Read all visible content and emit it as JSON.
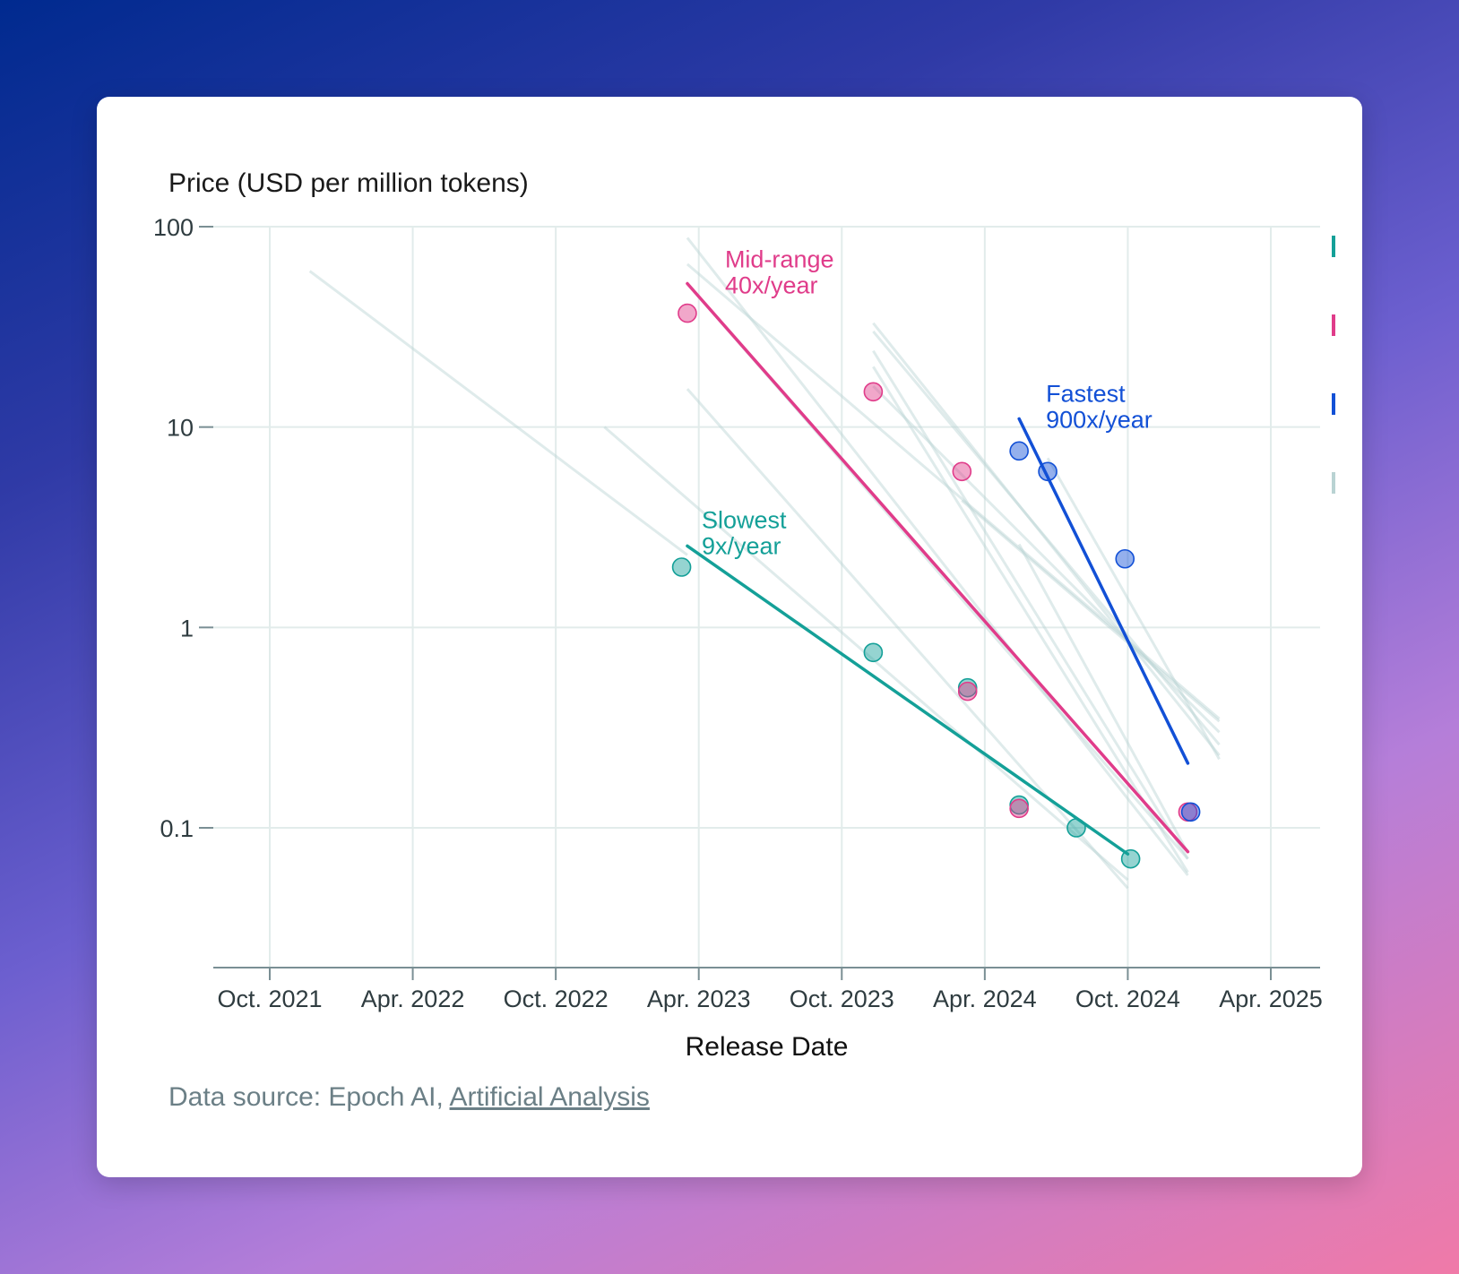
{
  "source": {
    "prefix": "Data source: Epoch AI, ",
    "link_label": "Artificial Analysis"
  },
  "chart_data": {
    "type": "scatter",
    "title": "",
    "ylabel": "Price (USD per million tokens)",
    "xlabel": "Release Date",
    "y_scale": "log",
    "ylim": [
      0.02,
      100
    ],
    "xlim": [
      2021.55,
      2025.25
    ],
    "y_ticks": [
      {
        "value": 100,
        "label": "100"
      },
      {
        "value": 10,
        "label": "10"
      },
      {
        "value": 1,
        "label": "1"
      },
      {
        "value": 0.1,
        "label": "0.1"
      }
    ],
    "x_ticks": [
      {
        "value": 2021.75,
        "label": "Oct. 2021"
      },
      {
        "value": 2022.25,
        "label": "Apr. 2022"
      },
      {
        "value": 2022.75,
        "label": "Oct. 2022"
      },
      {
        "value": 2023.25,
        "label": "Apr. 2023"
      },
      {
        "value": 2023.75,
        "label": "Oct. 2023"
      },
      {
        "value": 2024.25,
        "label": "Apr. 2024"
      },
      {
        "value": 2024.75,
        "label": "Oct. 2024"
      },
      {
        "value": 2025.25,
        "label": "Apr. 2025"
      }
    ],
    "colors": {
      "slowest": "#14a098",
      "midrange": "#e03c8a",
      "fastest": "#1250d6",
      "background_trend": "#b9d3d3"
    },
    "series": [
      {
        "name": "Slowest",
        "key": "slowest",
        "label_lines": [
          "Slowest",
          "9x/year"
        ],
        "trend": [
          [
            2023.21,
            2.55
          ],
          [
            2024.75,
            0.074
          ]
        ],
        "points": [
          [
            2023.19,
            2.0
          ],
          [
            2023.86,
            0.75
          ],
          [
            2024.19,
            0.5
          ],
          [
            2024.37,
            0.13
          ],
          [
            2024.57,
            0.1
          ],
          [
            2024.76,
            0.07
          ]
        ]
      },
      {
        "name": "Mid-range",
        "key": "midrange",
        "label_lines": [
          "Mid-range",
          "40x/year"
        ],
        "trend": [
          [
            2023.21,
            52
          ],
          [
            2024.96,
            0.076
          ]
        ],
        "points": [
          [
            2023.21,
            37
          ],
          [
            2023.86,
            15
          ],
          [
            2024.17,
            6
          ],
          [
            2024.19,
            0.48
          ],
          [
            2024.37,
            0.125
          ],
          [
            2024.96,
            0.12
          ]
        ]
      },
      {
        "name": "Fastest",
        "key": "fastest",
        "label_lines": [
          "Fastest",
          "900x/year"
        ],
        "trend": [
          [
            2024.37,
            11
          ],
          [
            2024.96,
            0.21
          ]
        ],
        "points": [
          [
            2024.37,
            7.6
          ],
          [
            2024.47,
            6.0
          ],
          [
            2024.74,
            2.2
          ],
          [
            2024.97,
            0.12
          ]
        ]
      }
    ],
    "background_trends": [
      [
        [
          2021.89,
          60
        ],
        [
          2023.21,
          2.3
        ]
      ],
      [
        [
          2022.92,
          10
        ],
        [
          2024.75,
          0.055
        ]
      ],
      [
        [
          2023.21,
          15.5
        ],
        [
          2024.75,
          0.05
        ]
      ],
      [
        [
          2023.21,
          88
        ],
        [
          2024.96,
          0.058
        ]
      ],
      [
        [
          2023.21,
          65
        ],
        [
          2025.07,
          0.35
        ]
      ],
      [
        [
          2023.21,
          52
        ],
        [
          2024.96,
          0.07
        ]
      ],
      [
        [
          2023.86,
          33
        ],
        [
          2025.07,
          0.23
        ]
      ],
      [
        [
          2023.86,
          30
        ],
        [
          2025.07,
          0.26
        ]
      ],
      [
        [
          2023.86,
          24
        ],
        [
          2024.96,
          0.07
        ]
      ],
      [
        [
          2023.86,
          20
        ],
        [
          2024.96,
          0.06
        ]
      ],
      [
        [
          2023.86,
          16
        ],
        [
          2025.07,
          0.3
        ]
      ],
      [
        [
          2024.37,
          2.6
        ],
        [
          2024.96,
          0.075
        ]
      ],
      [
        [
          2024.47,
          7
        ],
        [
          2025.07,
          0.22
        ]
      ],
      [
        [
          2024.17,
          4.3
        ],
        [
          2025.07,
          0.34
        ]
      ]
    ],
    "legend_markers": [
      "slowest",
      "midrange",
      "fastest",
      "background_trend"
    ]
  }
}
